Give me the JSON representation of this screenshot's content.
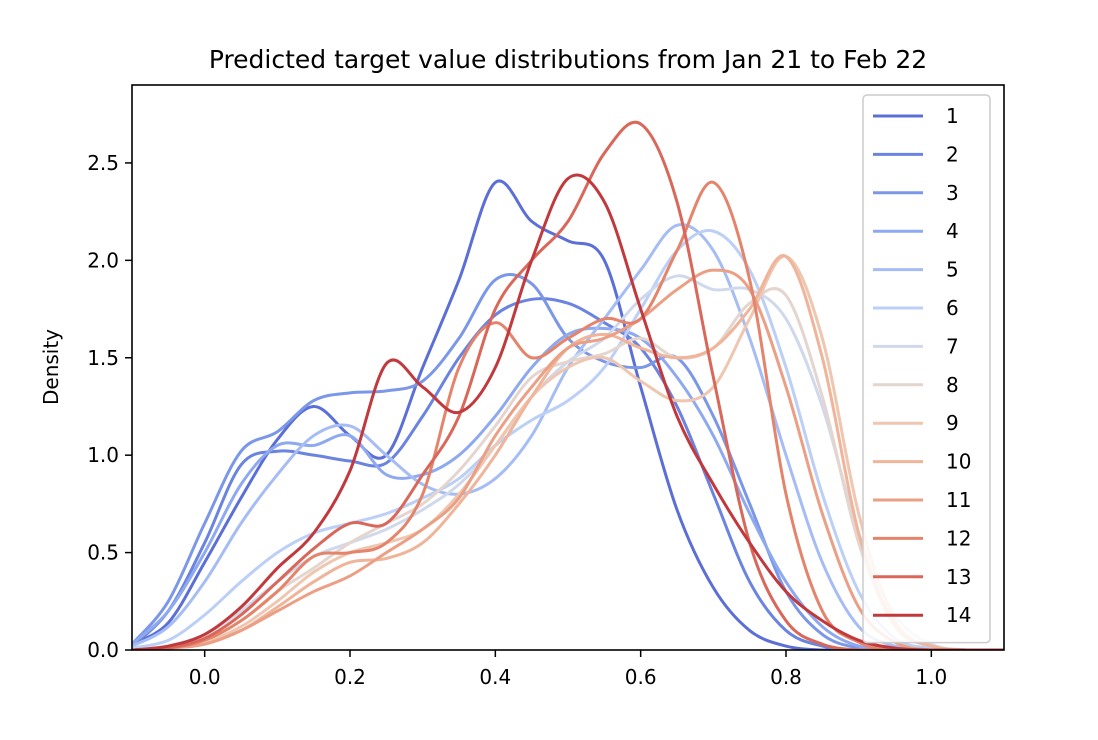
{
  "chart_data": {
    "type": "line",
    "title": "Predicted target value distributions from Jan 21 to Feb 22",
    "xlabel": "",
    "ylabel": "Density",
    "xlim": [
      -0.1,
      1.1
    ],
    "ylim": [
      0,
      2.9
    ],
    "xticks": [
      "0.0",
      "0.2",
      "0.4",
      "0.6",
      "0.8",
      "1.0"
    ],
    "yticks": [
      "0.0",
      "0.5",
      "1.0",
      "1.5",
      "2.0",
      "2.5"
    ],
    "grid": false,
    "legend_position": "top-right",
    "x": [
      -0.1,
      -0.05,
      0.0,
      0.05,
      0.1,
      0.15,
      0.2,
      0.25,
      0.3,
      0.35,
      0.4,
      0.45,
      0.5,
      0.55,
      0.6,
      0.65,
      0.7,
      0.75,
      0.8,
      0.85,
      0.9,
      0.95,
      1.0,
      1.05,
      1.1
    ],
    "series": [
      {
        "name": "1",
        "color": "#5b6fd6",
        "values": [
          0.03,
          0.14,
          0.45,
          0.78,
          1.08,
          1.25,
          1.1,
          1.0,
          1.45,
          1.9,
          2.4,
          2.2,
          2.1,
          2.0,
          1.35,
          0.72,
          0.32,
          0.1,
          0.02,
          0.0,
          0.0,
          0.0,
          0.0,
          0.0,
          0.0
        ]
      },
      {
        "name": "2",
        "color": "#6a84e0",
        "values": [
          0.02,
          0.2,
          0.55,
          0.95,
          1.02,
          1.0,
          0.97,
          0.96,
          1.2,
          1.5,
          1.72,
          1.8,
          1.78,
          1.68,
          1.55,
          1.25,
          0.8,
          0.35,
          0.1,
          0.02,
          0.0,
          0.0,
          0.0,
          0.0,
          0.0
        ]
      },
      {
        "name": "3",
        "color": "#7b97e8",
        "values": [
          0.03,
          0.25,
          0.65,
          1.02,
          1.12,
          1.28,
          1.32,
          1.33,
          1.38,
          1.6,
          1.9,
          1.88,
          1.6,
          1.48,
          1.45,
          1.5,
          1.2,
          0.75,
          0.3,
          0.08,
          0.01,
          0.0,
          0.0,
          0.0,
          0.0
        ]
      },
      {
        "name": "4",
        "color": "#8ea9ef",
        "values": [
          0.03,
          0.2,
          0.5,
          0.85,
          1.05,
          1.05,
          1.1,
          0.9,
          0.9,
          1.0,
          1.2,
          1.45,
          1.62,
          1.65,
          1.6,
          1.4,
          1.1,
          0.7,
          0.35,
          0.12,
          0.02,
          0.0,
          0.0,
          0.0,
          0.0
        ]
      },
      {
        "name": "5",
        "color": "#a5bdf4",
        "values": [
          0.02,
          0.12,
          0.35,
          0.65,
          0.9,
          1.1,
          1.15,
          1.0,
          0.85,
          0.8,
          0.88,
          1.1,
          1.45,
          1.7,
          1.95,
          2.18,
          2.05,
          1.6,
          1.0,
          0.45,
          0.12,
          0.02,
          0.0,
          0.0,
          0.0
        ]
      },
      {
        "name": "6",
        "color": "#bccff7",
        "values": [
          0.01,
          0.05,
          0.18,
          0.35,
          0.5,
          0.6,
          0.65,
          0.7,
          0.78,
          0.88,
          1.05,
          1.18,
          1.28,
          1.45,
          1.75,
          2.05,
          2.15,
          1.95,
          1.45,
          0.8,
          0.3,
          0.06,
          0.01,
          0.0,
          0.0
        ]
      },
      {
        "name": "7",
        "color": "#d0d9ec",
        "values": [
          0.0,
          0.02,
          0.08,
          0.2,
          0.35,
          0.48,
          0.55,
          0.62,
          0.72,
          0.85,
          1.05,
          1.3,
          1.48,
          1.6,
          1.8,
          1.92,
          1.85,
          1.85,
          1.7,
          1.25,
          0.6,
          0.18,
          0.03,
          0.0,
          0.0
        ]
      },
      {
        "name": "8",
        "color": "#e4d5cf",
        "values": [
          0.0,
          0.01,
          0.05,
          0.15,
          0.3,
          0.42,
          0.55,
          0.65,
          0.75,
          0.92,
          1.15,
          1.4,
          1.48,
          1.52,
          1.6,
          1.5,
          1.55,
          1.78,
          1.82,
          1.3,
          0.55,
          0.12,
          0.02,
          0.0,
          0.0
        ]
      },
      {
        "name": "9",
        "color": "#efc6b0",
        "values": [
          0.0,
          0.01,
          0.04,
          0.12,
          0.25,
          0.4,
          0.5,
          0.55,
          0.62,
          0.8,
          1.05,
          1.3,
          1.45,
          1.5,
          1.38,
          1.28,
          1.35,
          1.7,
          2.02,
          1.6,
          0.7,
          0.15,
          0.02,
          0.0,
          0.0
        ]
      },
      {
        "name": "10",
        "color": "#f0b49a",
        "values": [
          0.0,
          0.01,
          0.03,
          0.1,
          0.22,
          0.35,
          0.45,
          0.47,
          0.55,
          0.75,
          1.0,
          1.3,
          1.55,
          1.62,
          1.55,
          1.5,
          1.55,
          1.75,
          2.02,
          1.5,
          0.6,
          0.13,
          0.02,
          0.0,
          0.0
        ]
      },
      {
        "name": "11",
        "color": "#eb9f84",
        "values": [
          0.0,
          0.01,
          0.03,
          0.1,
          0.2,
          0.3,
          0.38,
          0.5,
          0.62,
          0.78,
          1.1,
          1.35,
          1.55,
          1.6,
          1.7,
          1.85,
          1.95,
          1.85,
          1.35,
          0.7,
          0.22,
          0.04,
          0.0,
          0.0,
          0.0
        ]
      },
      {
        "name": "12",
        "color": "#e4846b",
        "values": [
          0.0,
          0.01,
          0.05,
          0.15,
          0.3,
          0.48,
          0.5,
          0.55,
          0.8,
          1.45,
          1.68,
          1.5,
          1.6,
          1.7,
          1.7,
          2.05,
          2.4,
          1.9,
          0.8,
          0.2,
          0.04,
          0.0,
          0.0,
          0.0,
          0.0
        ]
      },
      {
        "name": "13",
        "color": "#d9675a",
        "values": [
          0.0,
          0.01,
          0.06,
          0.18,
          0.35,
          0.52,
          0.65,
          0.65,
          0.9,
          1.2,
          1.75,
          2.0,
          2.2,
          2.55,
          2.7,
          2.3,
          1.4,
          0.55,
          0.15,
          0.03,
          0.0,
          0.0,
          0.0,
          0.0,
          0.0
        ]
      },
      {
        "name": "14",
        "color": "#c1393c",
        "values": [
          0.0,
          0.02,
          0.08,
          0.22,
          0.42,
          0.6,
          0.92,
          1.47,
          1.35,
          1.22,
          1.45,
          2.0,
          2.42,
          2.3,
          1.75,
          1.2,
          0.85,
          0.55,
          0.3,
          0.15,
          0.05,
          0.01,
          0.0,
          0.0,
          0.0
        ]
      }
    ]
  }
}
